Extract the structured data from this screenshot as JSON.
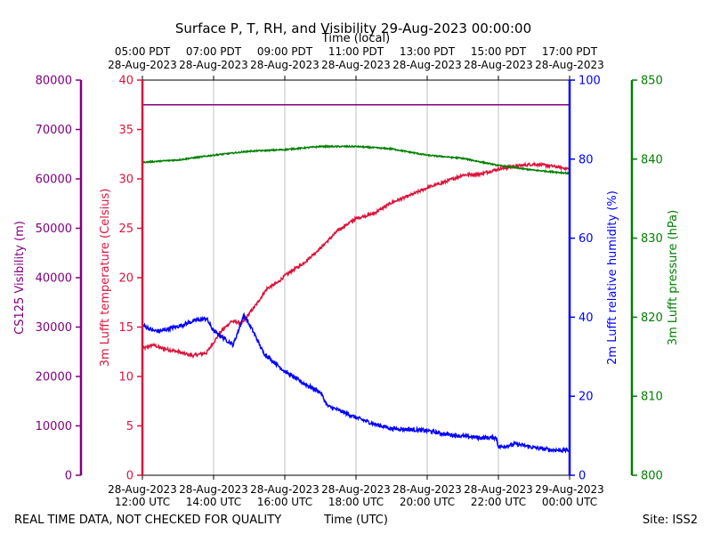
{
  "chart_data": {
    "type": "line",
    "title": "Surface P, T, RH, and Visibility 29-Aug-2023 00:00:00",
    "top_axis_label": "Time (local)",
    "xlabel": "Time (UTC)",
    "footer_left": "REAL TIME DATA, NOT CHECKED FOR QUALITY",
    "footer_right": "Site: ISS2",
    "x_range_hours": [
      12,
      24
    ],
    "bottom_ticks": [
      {
        "hour": 12,
        "line1": "28-Aug-2023",
        "line2": "12:00 UTC"
      },
      {
        "hour": 14,
        "line1": "28-Aug-2023",
        "line2": "14:00 UTC"
      },
      {
        "hour": 16,
        "line1": "28-Aug-2023",
        "line2": "16:00 UTC"
      },
      {
        "hour": 18,
        "line1": "28-Aug-2023",
        "line2": "18:00 UTC"
      },
      {
        "hour": 20,
        "line1": "28-Aug-2023",
        "line2": "20:00 UTC"
      },
      {
        "hour": 22,
        "line1": "28-Aug-2023",
        "line2": "22:00 UTC"
      },
      {
        "hour": 24,
        "line1": "29-Aug-2023",
        "line2": "00:00 UTC"
      }
    ],
    "top_ticks": [
      {
        "hour": 12,
        "line1": "05:00 PDT",
        "line2": "28-Aug-2023"
      },
      {
        "hour": 14,
        "line1": "07:00 PDT",
        "line2": "28-Aug-2023"
      },
      {
        "hour": 16,
        "line1": "09:00 PDT",
        "line2": "28-Aug-2023"
      },
      {
        "hour": 18,
        "line1": "11:00 PDT",
        "line2": "28-Aug-2023"
      },
      {
        "hour": 20,
        "line1": "13:00 PDT",
        "line2": "28-Aug-2023"
      },
      {
        "hour": 22,
        "line1": "15:00 PDT",
        "line2": "28-Aug-2023"
      },
      {
        "hour": 24,
        "line1": "17:00 PDT",
        "line2": "28-Aug-2023"
      }
    ],
    "grid": "vertical",
    "axes": [
      {
        "id": "vis",
        "label": "CS125 Visibility (m)",
        "color": "#800080",
        "ylim": [
          0,
          80000
        ],
        "ticks": [
          0,
          10000,
          20000,
          30000,
          40000,
          50000,
          60000,
          70000,
          80000
        ]
      },
      {
        "id": "temp",
        "label": "3m Lufft temperature (Celsius)",
        "color": "#dc143c",
        "ylim": [
          0,
          40
        ],
        "ticks": [
          0,
          5,
          10,
          15,
          20,
          25,
          30,
          35,
          40
        ]
      },
      {
        "id": "rh",
        "label": "2m Lufft relative humidity (%)",
        "color": "#0000ff",
        "ylim": [
          0,
          100
        ],
        "ticks": [
          0,
          20,
          40,
          60,
          80,
          100
        ]
      },
      {
        "id": "pres",
        "label": "3m Lufft pressure (hPa)",
        "color": "#008000",
        "ylim": [
          800,
          850
        ],
        "ticks": [
          800,
          810,
          820,
          830,
          840,
          850
        ]
      }
    ],
    "series": [
      {
        "axis": "vis",
        "color": "#800080",
        "noise": 0,
        "points": [
          [
            12,
            75000
          ],
          [
            24,
            75000
          ]
        ]
      },
      {
        "axis": "temp",
        "color": "#dc143c",
        "noise": 0.15,
        "points": [
          [
            12,
            12.8
          ],
          [
            12.3,
            13.2
          ],
          [
            12.5,
            12.9
          ],
          [
            13,
            12.5
          ],
          [
            13.4,
            12.1
          ],
          [
            13.8,
            12.4
          ],
          [
            14.2,
            14.5
          ],
          [
            14.5,
            15.6
          ],
          [
            14.8,
            15.4
          ],
          [
            15.2,
            17.3
          ],
          [
            15.5,
            18.9
          ],
          [
            15.8,
            19.5
          ],
          [
            16,
            20.2
          ],
          [
            16.5,
            21.4
          ],
          [
            17,
            23.0
          ],
          [
            17.5,
            24.8
          ],
          [
            18,
            26.0
          ],
          [
            18.5,
            26.5
          ],
          [
            19,
            27.6
          ],
          [
            19.5,
            28.3
          ],
          [
            20,
            29.1
          ],
          [
            20.5,
            29.7
          ],
          [
            21,
            30.4
          ],
          [
            21.5,
            30.5
          ],
          [
            22,
            31.0
          ],
          [
            22.5,
            31.3
          ],
          [
            23,
            31.5
          ],
          [
            23.5,
            31.3
          ],
          [
            24,
            31.0
          ]
        ]
      },
      {
        "axis": "rh",
        "color": "#0000ff",
        "noise": 0.5,
        "points": [
          [
            12,
            38.0
          ],
          [
            12.3,
            36.6
          ],
          [
            12.5,
            36.5
          ],
          [
            13,
            37.7
          ],
          [
            13.5,
            39.2
          ],
          [
            13.8,
            39.7
          ],
          [
            14,
            36.5
          ],
          [
            14.3,
            34.6
          ],
          [
            14.55,
            33.0
          ],
          [
            14.85,
            40.5
          ],
          [
            15.1,
            36.6
          ],
          [
            15.4,
            31.0
          ],
          [
            15.7,
            28.6
          ],
          [
            16,
            26.3
          ],
          [
            16.5,
            23.4
          ],
          [
            17,
            21.0
          ],
          [
            17.2,
            17.5
          ],
          [
            17.5,
            16.5
          ],
          [
            18,
            14.6
          ],
          [
            18.5,
            13.0
          ],
          [
            19,
            11.8
          ],
          [
            19.5,
            11.6
          ],
          [
            20,
            11.3
          ],
          [
            20.5,
            10.4
          ],
          [
            21,
            9.9
          ],
          [
            21.5,
            9.5
          ],
          [
            21.95,
            9.5
          ],
          [
            22,
            7.1
          ],
          [
            22.5,
            7.9
          ],
          [
            23,
            7.0
          ],
          [
            23.5,
            6.4
          ],
          [
            24,
            6.3
          ]
        ]
      },
      {
        "axis": "pres",
        "color": "#008000",
        "noise": 0.08,
        "points": [
          [
            12,
            839.6
          ],
          [
            13,
            839.9
          ],
          [
            14,
            840.5
          ],
          [
            15,
            841.0
          ],
          [
            16,
            841.2
          ],
          [
            17,
            841.6
          ],
          [
            18,
            841.6
          ],
          [
            19,
            841.3
          ],
          [
            20,
            840.5
          ],
          [
            21,
            840.1
          ],
          [
            22,
            839.2
          ],
          [
            23,
            838.6
          ],
          [
            24,
            838.2
          ]
        ]
      }
    ]
  }
}
